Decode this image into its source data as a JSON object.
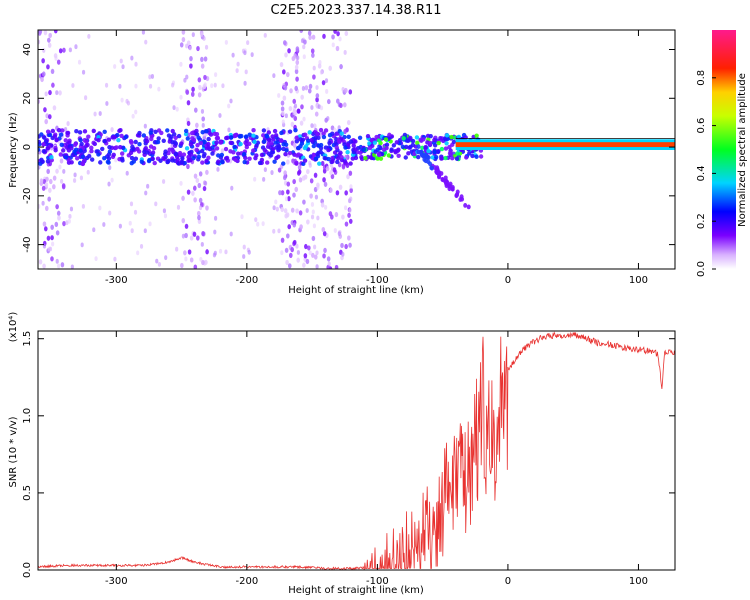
{
  "title": "C2E5.2023.337.14.38.R11",
  "chart_data": [
    {
      "type": "heatmap",
      "title": "C2E5.2023.337.14.38.R11",
      "xlabel": "Height of straight line (km)",
      "ylabel": "Frequency (Hz)",
      "xlim": [
        -360,
        128
      ],
      "ylim": [
        -50,
        48
      ],
      "x_ticks": [
        -300,
        -200,
        -100,
        0,
        100
      ],
      "x_tick_labels": [
        "-300",
        "-200",
        "-100",
        "0",
        "100"
      ],
      "y_ticks": [
        -40,
        -20,
        0,
        20,
        40
      ],
      "y_tick_labels": [
        "-40",
        "-20",
        "0",
        "20",
        "40"
      ],
      "colorbar": {
        "label": "Normalized spectral amplitude",
        "range": [
          0,
          1
        ],
        "ticks": [
          0.0,
          0.2,
          0.4,
          0.6,
          0.8
        ],
        "tick_labels": [
          "0.0",
          "0.2",
          "0.4",
          "0.6",
          "0.8"
        ],
        "colormap": "rainbow (white-violet-blue-cyan-green-yellow-red-magenta)"
      },
      "features": {
        "carrier_line": {
          "x_range": [
            -40,
            128
          ],
          "frequency": 1,
          "amplitude": 0.85
        },
        "noise_band_center_frequency": 0,
        "dense_noise_regions": [
          [
            -360,
            -340
          ],
          [
            -250,
            -230
          ],
          [
            -175,
            -120
          ]
        ],
        "descending_branch": {
          "from": [
            -70,
            0
          ],
          "to": [
            -30,
            -25
          ]
        }
      }
    },
    {
      "type": "line",
      "xlabel": "Height of straight line (km)",
      "ylabel": "SNR (10 * v/v)",
      "y_multiplier": "(x10⁴)",
      "xlim": [
        -360,
        128
      ],
      "ylim": [
        0,
        1.55
      ],
      "x_ticks": [
        -300,
        -200,
        -100,
        0,
        100
      ],
      "x_tick_labels": [
        "-300",
        "-200",
        "-100",
        "0",
        "100"
      ],
      "y_ticks": [
        0.0,
        0.5,
        1.0,
        1.5
      ],
      "y_tick_labels": [
        "0.0",
        "0.5",
        "1.0",
        "1.5"
      ],
      "color": "#e8312f",
      "series": [
        {
          "x": [
            -360,
            -340,
            -320,
            -300,
            -280,
            -260,
            -250,
            -240,
            -220,
            -200,
            -180,
            -160,
            -140,
            -120,
            -105,
            -95,
            -85,
            -75,
            -65,
            -55,
            -48,
            -42,
            -36,
            -30,
            -25,
            -20,
            -15,
            -10,
            -5,
            0,
            10,
            20,
            30,
            40,
            50,
            60,
            70,
            80,
            90,
            100,
            110,
            115,
            118,
            120,
            125,
            128
          ],
          "y": [
            0.02,
            0.03,
            0.03,
            0.03,
            0.03,
            0.05,
            0.08,
            0.05,
            0.02,
            0.02,
            0.02,
            0.02,
            0.01,
            0.01,
            0.02,
            0.06,
            0.15,
            0.22,
            0.3,
            0.45,
            0.6,
            0.7,
            0.75,
            0.8,
            1.0,
            1.2,
            1.1,
            1.0,
            1.2,
            1.3,
            1.42,
            1.48,
            1.52,
            1.52,
            1.53,
            1.5,
            1.47,
            1.46,
            1.44,
            1.43,
            1.42,
            1.4,
            1.18,
            1.4,
            1.42,
            1.4
          ]
        }
      ]
    }
  ]
}
